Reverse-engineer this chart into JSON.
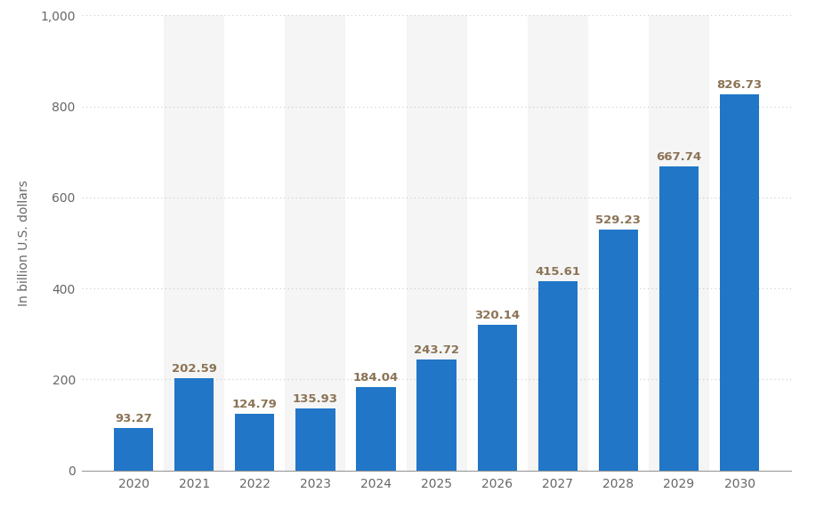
{
  "years": [
    "2020",
    "2021",
    "2022",
    "2023",
    "2024",
    "2025",
    "2026",
    "2027",
    "2028",
    "2029",
    "2030"
  ],
  "values": [
    93.27,
    202.59,
    124.79,
    135.93,
    184.04,
    243.72,
    320.14,
    415.61,
    529.23,
    667.74,
    826.73
  ],
  "bar_color": "#2176C7",
  "ylabel": "In billion U.S. dollars",
  "ylim": [
    0,
    1000
  ],
  "yticks": [
    0,
    200,
    400,
    600,
    800,
    1000
  ],
  "ytick_labels": [
    "0",
    "200",
    "400",
    "600",
    "800",
    "1,000"
  ],
  "grid_color": "#c8c8c8",
  "background_color": "#ffffff",
  "plot_bg_color": "#ffffff",
  "shaded_bg_color": "#f5f5f5",
  "shaded_indices": [
    1,
    3,
    5,
    7,
    9
  ],
  "label_color": "#8B7355",
  "axis_label_color": "#666666",
  "tick_color": "#666666",
  "bar_width": 0.65,
  "label_fontsize": 9.5,
  "ylabel_fontsize": 10,
  "tick_fontsize": 10
}
